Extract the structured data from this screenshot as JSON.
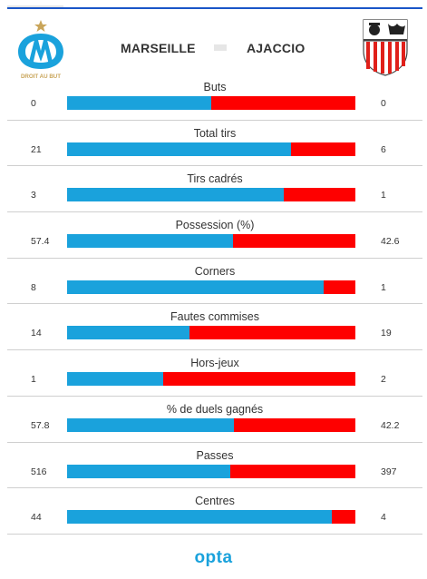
{
  "match": {
    "home_team": "MARSEILLE",
    "away_team": "AJACCIO",
    "home_motto": "DROIT AU BUT"
  },
  "colors": {
    "home": "#1aa2dc",
    "away": "#fe0000"
  },
  "stats": [
    {
      "label": "Buts",
      "home": "0",
      "away": "0",
      "home_share": 0.5
    },
    {
      "label": "Total tirs",
      "home": "21",
      "away": "6",
      "home_share": 0.778
    },
    {
      "label": "Tirs cadrés",
      "home": "3",
      "away": "1",
      "home_share": 0.75
    },
    {
      "label": "Possession (%)",
      "home": "57.4",
      "away": "42.6",
      "home_share": 0.574
    },
    {
      "label": "Corners",
      "home": "8",
      "away": "1",
      "home_share": 0.889
    },
    {
      "label": "Fautes commises",
      "home": "14",
      "away": "19",
      "home_share": 0.424
    },
    {
      "label": "Hors-jeux",
      "home": "1",
      "away": "2",
      "home_share": 0.333
    },
    {
      "label": "% de duels gagnés",
      "home": "57.8",
      "away": "42.2",
      "home_share": 0.578
    },
    {
      "label": "Passes",
      "home": "516",
      "away": "397",
      "home_share": 0.565
    },
    {
      "label": "Centres",
      "home": "44",
      "away": "4",
      "home_share": 0.917
    }
  ],
  "footer": {
    "brand": "opta"
  }
}
